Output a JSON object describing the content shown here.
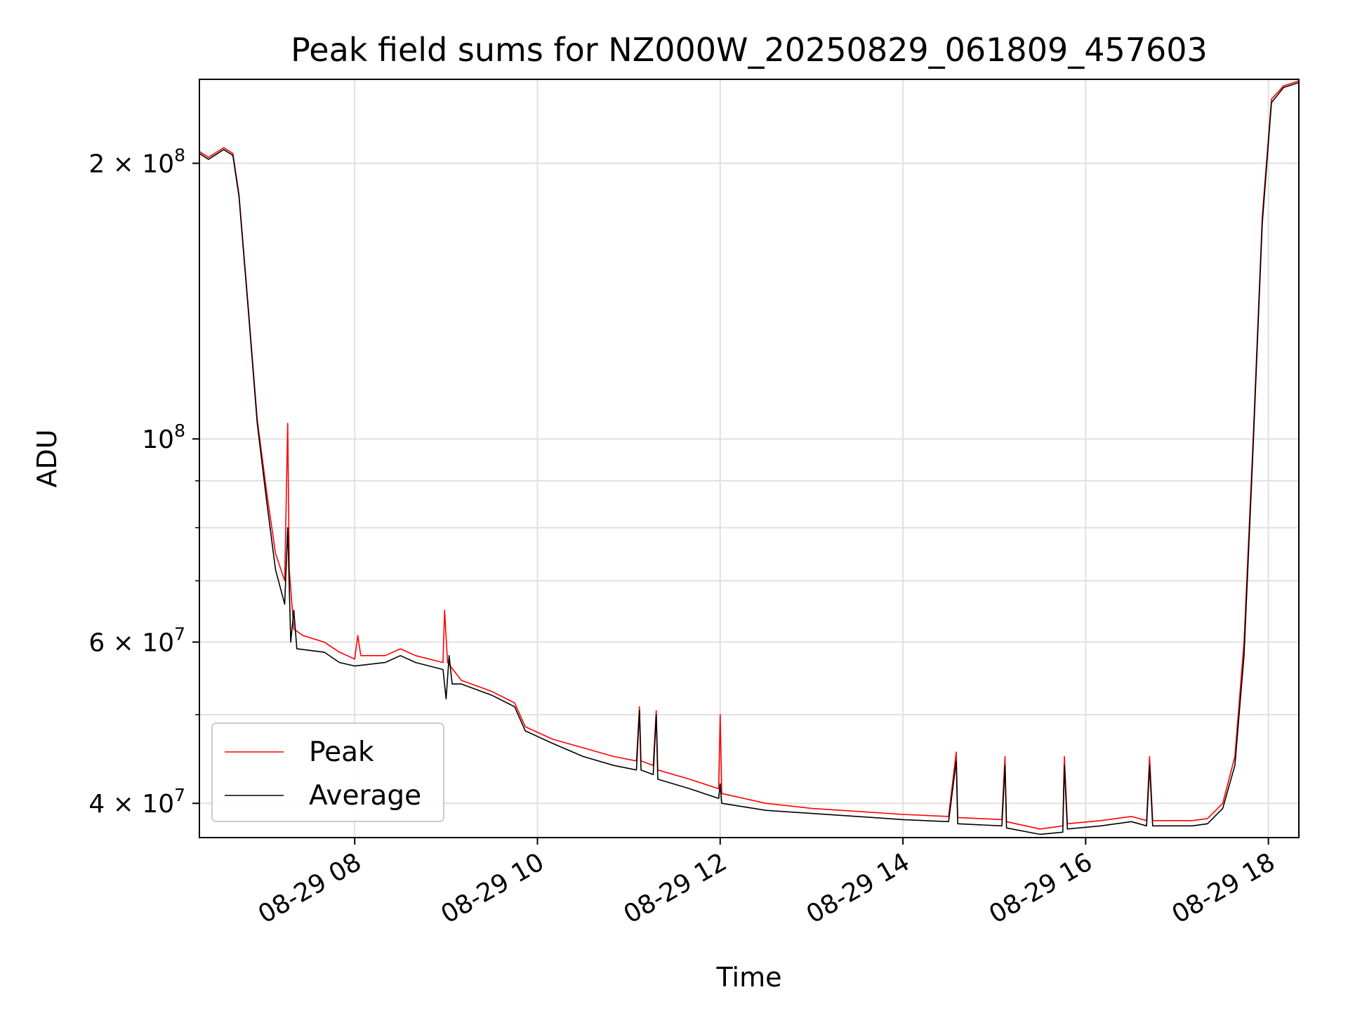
{
  "chart_data": {
    "type": "line",
    "title": "Peak field sums for NZ000W_20250829_061809_457603",
    "xlabel": "Time",
    "ylabel": "ADU",
    "y_scale": "log",
    "grid": true,
    "legend_position": "lower-left",
    "xlim": [
      "2025-08-29 06:18",
      "2025-08-29 18:20"
    ],
    "ylim": [
      36700000,
      247000000
    ],
    "x_ticks": [
      {
        "time": "2025-08-29 08:00",
        "label": "08-29 08"
      },
      {
        "time": "2025-08-29 10:00",
        "label": "08-29 10"
      },
      {
        "time": "2025-08-29 12:00",
        "label": "08-29 12"
      },
      {
        "time": "2025-08-29 14:00",
        "label": "08-29 14"
      },
      {
        "time": "2025-08-29 16:00",
        "label": "08-29 16"
      },
      {
        "time": "2025-08-29 18:00",
        "label": "08-29 18"
      }
    ],
    "y_ticks": [
      {
        "value": 40000000,
        "base": "4 × 10",
        "exp": "7"
      },
      {
        "value": 60000000,
        "base": "6 × 10",
        "exp": "7"
      },
      {
        "value": 100000000,
        "base": "10",
        "exp": "8"
      },
      {
        "value": 200000000,
        "base": "2 × 10",
        "exp": "8"
      }
    ],
    "y_minor_ticks": [
      50000000,
      70000000,
      80000000,
      90000000
    ],
    "series": [
      {
        "name": "Peak",
        "color": "#ff0000",
        "points": [
          [
            "2025-08-29 06:18",
            206000000
          ],
          [
            "2025-08-29 06:24",
            203000000
          ],
          [
            "2025-08-29 06:30",
            206000000
          ],
          [
            "2025-08-29 06:34",
            208000000
          ],
          [
            "2025-08-29 06:40",
            205000000
          ],
          [
            "2025-08-29 06:44",
            185000000
          ],
          [
            "2025-08-29 06:50",
            140000000
          ],
          [
            "2025-08-29 06:56",
            105000000
          ],
          [
            "2025-08-29 07:02",
            88000000
          ],
          [
            "2025-08-29 07:08",
            75000000
          ],
          [
            "2025-08-29 07:14",
            70000000
          ],
          [
            "2025-08-29 07:16",
            104000000
          ],
          [
            "2025-08-29 07:17",
            72000000
          ],
          [
            "2025-08-29 07:20",
            62000000
          ],
          [
            "2025-08-29 07:26",
            61000000
          ],
          [
            "2025-08-29 07:40",
            60000000
          ],
          [
            "2025-08-29 07:50",
            58500000
          ],
          [
            "2025-08-29 08:00",
            57500000
          ],
          [
            "2025-08-29 08:02",
            61000000
          ],
          [
            "2025-08-29 08:04",
            58000000
          ],
          [
            "2025-08-29 08:20",
            58000000
          ],
          [
            "2025-08-29 08:30",
            59000000
          ],
          [
            "2025-08-29 08:40",
            58000000
          ],
          [
            "2025-08-29 08:58",
            57000000
          ],
          [
            "2025-08-29 08:59",
            65000000
          ],
          [
            "2025-08-29 09:01",
            57000000
          ],
          [
            "2025-08-29 09:10",
            54500000
          ],
          [
            "2025-08-29 09:30",
            53000000
          ],
          [
            "2025-08-29 09:45",
            51500000
          ],
          [
            "2025-08-29 09:52",
            48500000
          ],
          [
            "2025-08-29 10:10",
            47000000
          ],
          [
            "2025-08-29 10:30",
            46000000
          ],
          [
            "2025-08-29 10:50",
            45000000
          ],
          [
            "2025-08-29 11:05",
            44500000
          ],
          [
            "2025-08-29 11:07",
            51000000
          ],
          [
            "2025-08-29 11:08",
            44500000
          ],
          [
            "2025-08-29 11:16",
            44000000
          ],
          [
            "2025-08-29 11:18",
            50500000
          ],
          [
            "2025-08-29 11:19",
            43500000
          ],
          [
            "2025-08-29 11:40",
            42500000
          ],
          [
            "2025-08-29 11:59",
            41500000
          ],
          [
            "2025-08-29 12:00",
            50000000
          ],
          [
            "2025-08-29 12:01",
            41000000
          ],
          [
            "2025-08-29 12:30",
            40000000
          ],
          [
            "2025-08-29 13:00",
            39500000
          ],
          [
            "2025-08-29 13:30",
            39200000
          ],
          [
            "2025-08-29 14:00",
            38900000
          ],
          [
            "2025-08-29 14:30",
            38700000
          ],
          [
            "2025-08-29 14:35",
            45500000
          ],
          [
            "2025-08-29 14:36",
            38600000
          ],
          [
            "2025-08-29 15:05",
            38400000
          ],
          [
            "2025-08-29 15:07",
            45000000
          ],
          [
            "2025-08-29 15:08",
            38200000
          ],
          [
            "2025-08-29 15:30",
            37500000
          ],
          [
            "2025-08-29 15:45",
            37800000
          ],
          [
            "2025-08-29 15:46",
            45000000
          ],
          [
            "2025-08-29 15:48",
            38000000
          ],
          [
            "2025-08-29 16:10",
            38300000
          ],
          [
            "2025-08-29 16:30",
            38700000
          ],
          [
            "2025-08-29 16:40",
            38300000
          ],
          [
            "2025-08-29 16:42",
            45000000
          ],
          [
            "2025-08-29 16:44",
            38300000
          ],
          [
            "2025-08-29 17:10",
            38300000
          ],
          [
            "2025-08-29 17:20",
            38500000
          ],
          [
            "2025-08-29 17:30",
            40000000
          ],
          [
            "2025-08-29 17:38",
            45000000
          ],
          [
            "2025-08-29 17:44",
            60000000
          ],
          [
            "2025-08-29 17:50",
            100000000
          ],
          [
            "2025-08-29 17:56",
            175000000
          ],
          [
            "2025-08-29 18:02",
            235000000
          ],
          [
            "2025-08-29 18:10",
            243000000
          ],
          [
            "2025-08-29 18:20",
            246000000
          ]
        ]
      },
      {
        "name": "Average",
        "color": "#000000",
        "points": [
          [
            "2025-08-29 06:18",
            205000000
          ],
          [
            "2025-08-29 06:24",
            202000000
          ],
          [
            "2025-08-29 06:30",
            205000000
          ],
          [
            "2025-08-29 06:34",
            207000000
          ],
          [
            "2025-08-29 06:40",
            204000000
          ],
          [
            "2025-08-29 06:44",
            184000000
          ],
          [
            "2025-08-29 06:50",
            139000000
          ],
          [
            "2025-08-29 06:56",
            104000000
          ],
          [
            "2025-08-29 07:02",
            86000000
          ],
          [
            "2025-08-29 07:08",
            72000000
          ],
          [
            "2025-08-29 07:14",
            66000000
          ],
          [
            "2025-08-29 07:16",
            80000000
          ],
          [
            "2025-08-29 07:17",
            69000000
          ],
          [
            "2025-08-29 07:18",
            60000000
          ],
          [
            "2025-08-29 07:20",
            65000000
          ],
          [
            "2025-08-29 07:22",
            59000000
          ],
          [
            "2025-08-29 07:40",
            58500000
          ],
          [
            "2025-08-29 07:50",
            57000000
          ],
          [
            "2025-08-29 08:00",
            56500000
          ],
          [
            "2025-08-29 08:20",
            57000000
          ],
          [
            "2025-08-29 08:30",
            58000000
          ],
          [
            "2025-08-29 08:40",
            57000000
          ],
          [
            "2025-08-29 08:58",
            56000000
          ],
          [
            "2025-08-29 09:00",
            52000000
          ],
          [
            "2025-08-29 09:02",
            58000000
          ],
          [
            "2025-08-29 09:04",
            54000000
          ],
          [
            "2025-08-29 09:10",
            54000000
          ],
          [
            "2025-08-29 09:30",
            52500000
          ],
          [
            "2025-08-29 09:45",
            51000000
          ],
          [
            "2025-08-29 09:52",
            48000000
          ],
          [
            "2025-08-29 10:10",
            46500000
          ],
          [
            "2025-08-29 10:30",
            45000000
          ],
          [
            "2025-08-29 10:50",
            44000000
          ],
          [
            "2025-08-29 11:05",
            43500000
          ],
          [
            "2025-08-29 11:07",
            50500000
          ],
          [
            "2025-08-29 11:08",
            43500000
          ],
          [
            "2025-08-29 11:16",
            43000000
          ],
          [
            "2025-08-29 11:18",
            50000000
          ],
          [
            "2025-08-29 11:19",
            42500000
          ],
          [
            "2025-08-29 11:40",
            41500000
          ],
          [
            "2025-08-29 11:59",
            40500000
          ],
          [
            "2025-08-29 12:00",
            42000000
          ],
          [
            "2025-08-29 12:01",
            40000000
          ],
          [
            "2025-08-29 12:30",
            39300000
          ],
          [
            "2025-08-29 13:00",
            39000000
          ],
          [
            "2025-08-29 13:30",
            38700000
          ],
          [
            "2025-08-29 14:00",
            38400000
          ],
          [
            "2025-08-29 14:30",
            38200000
          ],
          [
            "2025-08-29 14:35",
            44500000
          ],
          [
            "2025-08-29 14:36",
            38000000
          ],
          [
            "2025-08-29 15:05",
            37800000
          ],
          [
            "2025-08-29 15:07",
            44000000
          ],
          [
            "2025-08-29 15:08",
            37600000
          ],
          [
            "2025-08-29 15:30",
            37000000
          ],
          [
            "2025-08-29 15:45",
            37200000
          ],
          [
            "2025-08-29 15:46",
            44000000
          ],
          [
            "2025-08-29 15:48",
            37500000
          ],
          [
            "2025-08-29 16:10",
            37800000
          ],
          [
            "2025-08-29 16:30",
            38200000
          ],
          [
            "2025-08-29 16:40",
            37800000
          ],
          [
            "2025-08-29 16:42",
            44000000
          ],
          [
            "2025-08-29 16:44",
            37800000
          ],
          [
            "2025-08-29 17:10",
            37800000
          ],
          [
            "2025-08-29 17:20",
            38000000
          ],
          [
            "2025-08-29 17:30",
            39500000
          ],
          [
            "2025-08-29 17:38",
            44000000
          ],
          [
            "2025-08-29 17:44",
            58000000
          ],
          [
            "2025-08-29 17:50",
            98000000
          ],
          [
            "2025-08-29 17:56",
            172000000
          ],
          [
            "2025-08-29 18:02",
            233000000
          ],
          [
            "2025-08-29 18:10",
            242000000
          ],
          [
            "2025-08-29 18:20",
            245000000
          ]
        ]
      }
    ]
  }
}
